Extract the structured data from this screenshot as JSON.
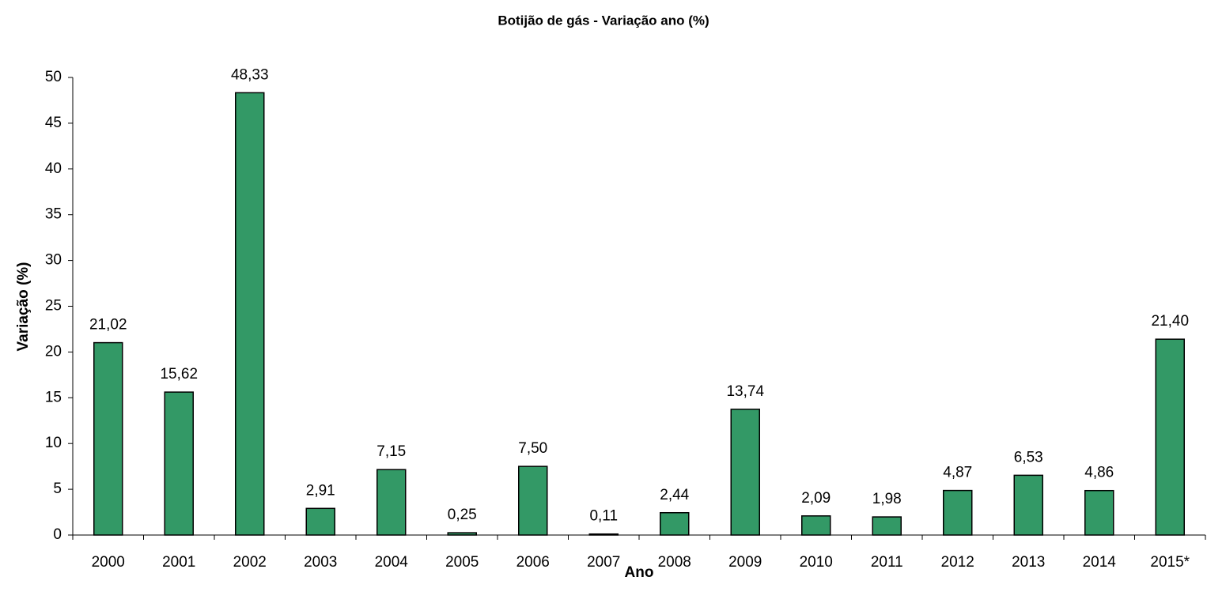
{
  "chart_data": {
    "type": "bar",
    "title": "Botijão de gás - Variação ano (%)",
    "x_label": "Ano",
    "y_label": "Variação (%)",
    "categories": [
      "2000",
      "2001",
      "2002",
      "2003",
      "2004",
      "2005",
      "2006",
      "2007",
      "2008",
      "2009",
      "2010",
      "2011",
      "2012",
      "2013",
      "2014",
      "2015*"
    ],
    "values": [
      21.02,
      15.62,
      48.33,
      2.91,
      7.15,
      0.25,
      7.5,
      0.11,
      2.44,
      13.74,
      2.09,
      1.98,
      4.87,
      6.53,
      4.86,
      21.4
    ],
    "value_labels": [
      "21,02",
      "15,62",
      "48,33",
      "2,91",
      "7,15",
      "0,25",
      "7,50",
      "0,11",
      "2,44",
      "13,74",
      "2,09",
      "1,98",
      "4,87",
      "6,53",
      "4,86",
      "21,40"
    ],
    "color": "#339966",
    "ylim": [
      0,
      50
    ],
    "yticks": [
      0,
      5,
      10,
      15,
      20,
      25,
      30,
      35,
      40,
      45,
      50
    ],
    "grid": false
  }
}
